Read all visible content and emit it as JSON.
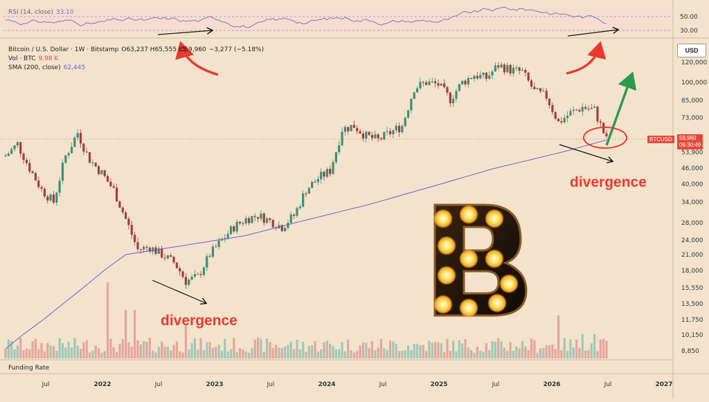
{
  "rsi_panel": {
    "label": "RSI (14, close)",
    "value": "33.10",
    "ticks": [
      "50.00",
      "30.00"
    ]
  },
  "header": {
    "symbol": "Bitcoin / U.S. Dollar · 1W · Bitstamp",
    "ohlc": "O63,237  H65,555  L5",
    "close_part": "C59,960",
    "change": "−3,277 (−5.18%)",
    "vol_label": "Vol · BTC",
    "vol_value": "9.98 K",
    "sma_label": "SMA (200, close)",
    "sma_value": "62,445"
  },
  "currency_button": "USD",
  "price_badge": {
    "name": "BTCUSD",
    "price": "59,960",
    "countdown": "06:30:49"
  },
  "funding_rate_label": "Funding Rate",
  "annotations": {
    "divergence_left": "divergence",
    "divergence_right": "divergence"
  },
  "colors": {
    "up": "#3c8f76",
    "down": "#a33d3d",
    "sma": "#6b5bd6",
    "rsi": "#8a6fc0",
    "arrow_red": "#e63b2e",
    "arrow_green": "#2d9a52"
  },
  "chart_data": {
    "type": "candlestick",
    "price_axis_ticks": [
      120000,
      100000,
      85000,
      73000,
      53900,
      46000,
      40000,
      34000,
      28000,
      24000,
      21000,
      18000,
      15550,
      13500,
      11750,
      10150,
      8850
    ],
    "price_axis_labels": [
      "120,000",
      "100,000",
      "85,000",
      "73,000",
      "53,900",
      "46,000",
      "40,000",
      "34,000",
      "28,000",
      "24,000",
      "21,000",
      "18,000",
      "15,550",
      "13,500",
      "11,750",
      "10,150",
      "8,850"
    ],
    "time_axis_labels": [
      "Jul",
      "2022",
      "Jul",
      "2023",
      "Jul",
      "2024",
      "Jul",
      "2025",
      "Jul",
      "2026",
      "Jul",
      "2027"
    ],
    "price_path_approx": [
      [
        0,
        52000
      ],
      [
        4,
        58000
      ],
      [
        8,
        46000
      ],
      [
        12,
        38000
      ],
      [
        16,
        34000
      ],
      [
        20,
        52000
      ],
      [
        24,
        64000
      ],
      [
        28,
        50000
      ],
      [
        32,
        44000
      ],
      [
        36,
        38000
      ],
      [
        40,
        29000
      ],
      [
        44,
        22000
      ],
      [
        48,
        22500
      ],
      [
        52,
        21000
      ],
      [
        56,
        19500
      ],
      [
        60,
        16500
      ],
      [
        64,
        17000
      ],
      [
        68,
        21000
      ],
      [
        72,
        24000
      ],
      [
        76,
        27000
      ],
      [
        80,
        29000
      ],
      [
        84,
        30000
      ],
      [
        88,
        28500
      ],
      [
        92,
        27000
      ],
      [
        96,
        30000
      ],
      [
        100,
        38000
      ],
      [
        104,
        42000
      ],
      [
        108,
        45000
      ],
      [
        112,
        66000
      ],
      [
        116,
        68000
      ],
      [
        120,
        62000
      ],
      [
        124,
        60000
      ],
      [
        128,
        64000
      ],
      [
        132,
        68000
      ],
      [
        136,
        95000
      ],
      [
        140,
        100000
      ],
      [
        144,
        98000
      ],
      [
        148,
        86000
      ],
      [
        152,
        100000
      ],
      [
        156,
        107000
      ],
      [
        160,
        104000
      ],
      [
        164,
        117000
      ],
      [
        168,
        112000
      ],
      [
        172,
        110000
      ],
      [
        176,
        92000
      ],
      [
        180,
        88000
      ],
      [
        184,
        70000
      ],
      [
        188,
        76000
      ],
      [
        192,
        80000
      ],
      [
        196,
        78000
      ],
      [
        200,
        59960
      ]
    ],
    "sma200_path_approx": [
      [
        0,
        9000
      ],
      [
        40,
        21000
      ],
      [
        80,
        25000
      ],
      [
        120,
        33000
      ],
      [
        160,
        45000
      ],
      [
        200,
        60000
      ]
    ],
    "volume": "relative bars along bottom; larger spikes in 2022 sell-off",
    "rsi_reference_lines": [
      50,
      30
    ]
  }
}
